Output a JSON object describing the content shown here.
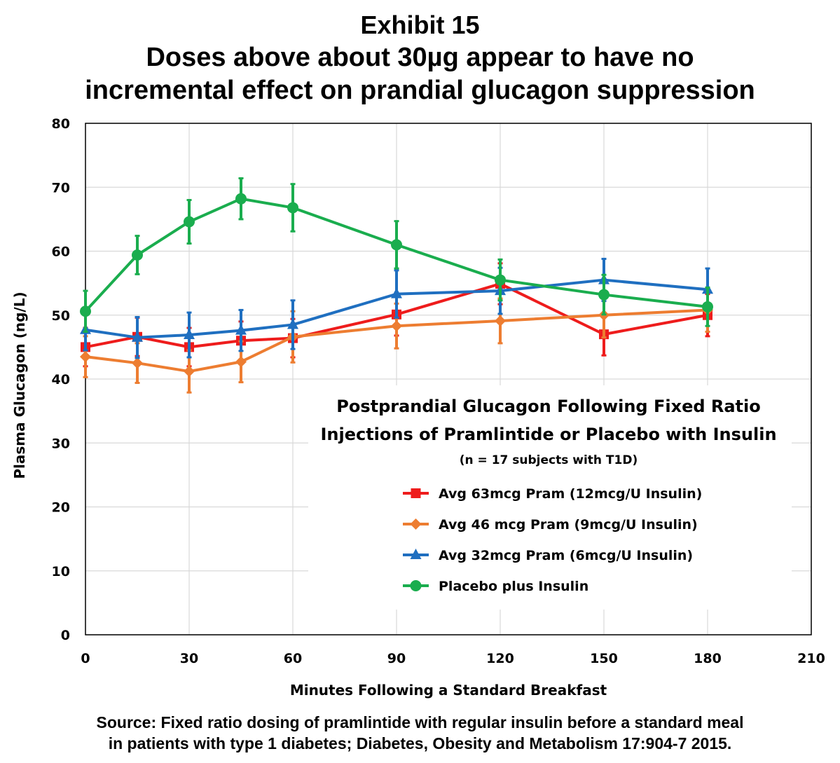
{
  "header": {
    "exhibit": "Exhibit 15",
    "title_line1": "Doses above about 30µg appear to have no",
    "title_line2": "incremental effect on prandial glucagon suppression"
  },
  "source": {
    "line1": "Source:  Fixed ratio dosing of pramlintide with regular insulin before a standard meal",
    "line2": "in patients with type 1 diabetes; Diabetes, Obesity and Metabolism 17:904-7 2015."
  },
  "chart_data": {
    "type": "line",
    "xlabel": "Minutes Following a Standard Breakfast",
    "ylabel": "Plasma Glucagon (ng/L)",
    "xlim": [
      0,
      210
    ],
    "ylim": [
      0,
      80
    ],
    "xticks": [
      0,
      30,
      60,
      90,
      120,
      150,
      180,
      210
    ],
    "yticks": [
      0,
      10,
      20,
      30,
      40,
      50,
      60,
      70,
      80
    ],
    "grid": true,
    "legend": {
      "title_line1": "Postprandial Glucagon Following Fixed Ratio",
      "title_line2": "Injections of Pramlintide or Placebo with Insulin",
      "subtitle": "(n = 17 subjects with T1D)",
      "placement": "bottom-right"
    },
    "x": [
      0,
      15,
      30,
      45,
      60,
      90,
      120,
      150,
      180
    ],
    "series": [
      {
        "name": "Avg 63mcg Pram (12mcg/U Insulin)",
        "color": "#ee1c1c",
        "marker": "square",
        "values": [
          45.0,
          46.6,
          45.0,
          46.0,
          46.4,
          50.1,
          54.9,
          47.0,
          50.0
        ],
        "errors": [
          3.0,
          3.0,
          3.0,
          3.0,
          3.0,
          3.3,
          3.2,
          3.3,
          3.3
        ]
      },
      {
        "name": "Avg 46 mcg Pram (9mcg/U Insulin)",
        "color": "#ed7d31",
        "marker": "diamond",
        "values": [
          43.5,
          42.5,
          41.2,
          42.7,
          46.6,
          48.3,
          49.1,
          50.0,
          50.8
        ],
        "errors": [
          3.2,
          3.1,
          3.3,
          3.2,
          4.0,
          3.5,
          3.5,
          3.5,
          3.4
        ]
      },
      {
        "name": "Avg 32mcg Pram (6mcg/U Insulin)",
        "color": "#1f6fc0",
        "marker": "triangle",
        "values": [
          47.7,
          46.5,
          46.9,
          47.6,
          48.5,
          53.3,
          53.8,
          55.5,
          54.0
        ],
        "errors": [
          3.2,
          3.2,
          3.5,
          3.2,
          3.8,
          3.7,
          3.6,
          3.3,
          3.3
        ]
      },
      {
        "name": "Placebo plus Insulin",
        "color": "#1aad4e",
        "marker": "circle",
        "values": [
          50.6,
          59.4,
          64.6,
          68.2,
          66.8,
          61.0,
          55.5,
          53.2,
          51.3
        ],
        "errors": [
          3.2,
          3.0,
          3.4,
          3.2,
          3.7,
          3.7,
          3.2,
          3.1,
          3.0
        ]
      }
    ]
  }
}
